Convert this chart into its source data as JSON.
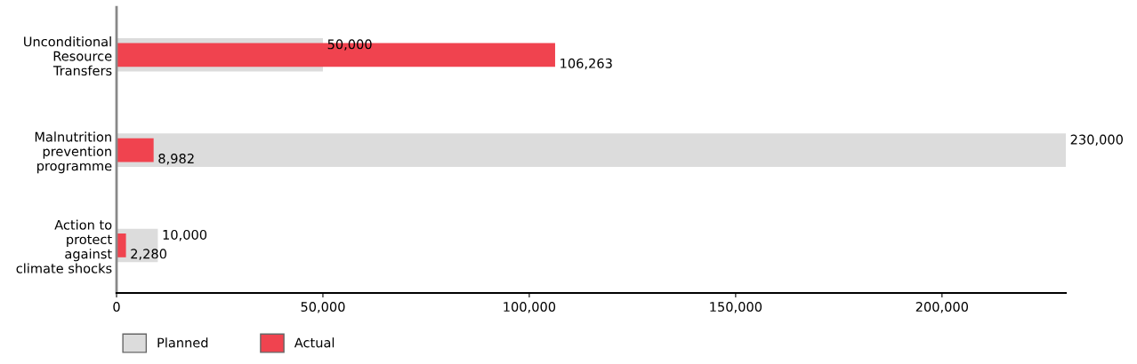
{
  "chart_data": {
    "type": "bar",
    "orientation": "horizontal",
    "categories": [
      "Unconditional\nResource\nTransfers",
      "Malnutrition\nprevention\nprogramme",
      "Action to\nprotect\nagainst\nclimate shocks"
    ],
    "series": [
      {
        "name": "Planned",
        "color": "#dcdcdc",
        "values": [
          50000,
          230000,
          10000
        ],
        "value_labels": [
          "50,000",
          "230,000",
          "10,000"
        ]
      },
      {
        "name": "Actual",
        "color": "#f0434f",
        "values": [
          106263,
          8982,
          2280
        ],
        "value_labels": [
          "106,263",
          "8,982",
          "2,280"
        ]
      }
    ],
    "xlim": [
      0,
      230000
    ],
    "xticks": [
      0,
      {
        "value": 50000,
        "label": "50,000"
      },
      {
        "value": 100000,
        "label": "100,000"
      },
      {
        "value": 150000,
        "label": "150,000"
      },
      {
        "value": 200000,
        "label": "200,000"
      }
    ],
    "grid": false,
    "legend": "bottom left"
  }
}
